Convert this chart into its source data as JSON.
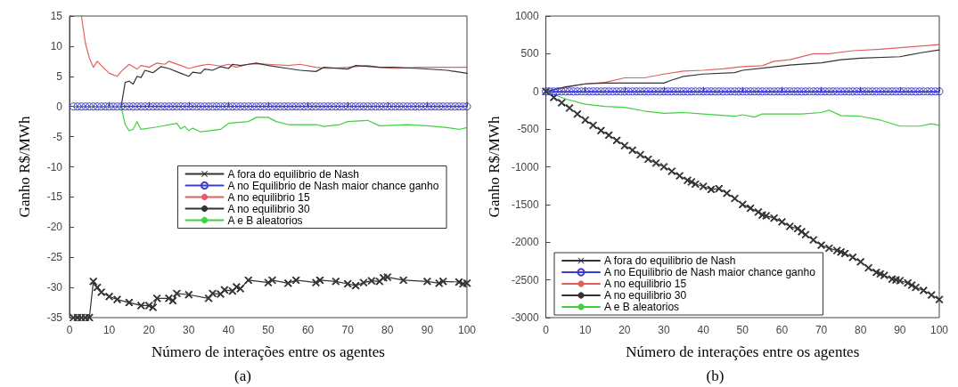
{
  "chart_data": [
    {
      "type": "line",
      "xlabel": "Número de interações entre os agentes",
      "ylabel": "Ganho R$/MWh",
      "annotations": [
        "(a)"
      ],
      "xlim": [
        0,
        100
      ],
      "xticks": [
        0,
        10,
        20,
        30,
        40,
        50,
        60,
        70,
        80,
        90,
        100
      ],
      "ylim": [
        -35,
        15
      ],
      "yticks": [
        -35,
        -30,
        -25,
        -20,
        -15,
        -10,
        -5,
        0,
        5,
        10,
        15
      ],
      "legend": "right",
      "line_style": "solid",
      "series": [
        {
          "name": "A fora do equilibrio de Nash",
          "color": "#333333",
          "marker": "cross",
          "x": [
            1,
            2,
            3,
            4,
            5,
            6,
            7,
            8,
            10,
            12,
            15,
            18,
            20,
            21,
            22,
            25,
            26,
            27,
            30,
            35,
            36,
            38,
            39,
            41,
            42,
            43,
            45,
            50,
            51,
            55,
            57,
            62,
            63,
            67,
            70,
            72,
            74,
            76,
            78,
            79,
            80,
            84,
            90,
            93,
            94,
            98,
            99,
            100
          ],
          "values": [
            -35,
            -35,
            -35,
            -35,
            -35,
            -29,
            -30,
            -30.8,
            -31.5,
            -32,
            -32.5,
            -33,
            -33,
            -33.3,
            -31.8,
            -31.8,
            -32.2,
            -31,
            -31.2,
            -31.8,
            -31,
            -31.1,
            -30.4,
            -30.6,
            -29.9,
            -30.2,
            -28.8,
            -29.2,
            -28.8,
            -29.3,
            -28.8,
            -29.2,
            -28.8,
            -29,
            -29.4,
            -29.7,
            -29.2,
            -28.9,
            -29,
            -28.4,
            -28.3,
            -28.8,
            -29,
            -29.3,
            -29,
            -29.1,
            -29.4,
            -29.3
          ]
        },
        {
          "name": "A no Equilibrio de Nash maior chance ganho",
          "color": "#3b3bd0",
          "marker": "circle",
          "x": [
            1,
            2,
            3,
            4,
            5,
            6,
            7,
            8,
            9,
            10,
            11,
            12,
            13,
            14,
            15,
            16,
            17,
            18,
            19,
            20,
            21,
            22,
            23,
            24,
            25,
            26,
            27,
            28,
            29,
            30,
            31,
            32,
            33,
            34,
            35,
            36,
            37,
            38,
            39,
            40,
            41,
            42,
            43,
            44,
            45,
            46,
            47,
            48,
            49,
            50,
            51,
            52,
            53,
            54,
            55,
            56,
            57,
            58,
            59,
            60,
            61,
            62,
            63,
            64,
            65,
            66,
            67,
            68,
            69,
            70,
            71,
            72,
            73,
            74,
            75,
            76,
            77,
            78,
            79,
            80,
            81,
            82,
            83,
            84,
            85,
            86,
            87,
            88,
            89,
            90,
            91,
            92,
            93,
            94,
            95,
            96,
            97,
            98,
            99,
            100
          ],
          "values": [
            0,
            0,
            0,
            0,
            0,
            0,
            0,
            0,
            0,
            0,
            0,
            0,
            0,
            0,
            0,
            0,
            0,
            0,
            0,
            0,
            0,
            0,
            0,
            0,
            0,
            0,
            0,
            0,
            0,
            0,
            0,
            0,
            0,
            0,
            0,
            0,
            0,
            0,
            0,
            0,
            0,
            0,
            0,
            0,
            0,
            0,
            0,
            0,
            0,
            0,
            0,
            0,
            0,
            0,
            0,
            0,
            0,
            0,
            0,
            0,
            0,
            0,
            0,
            0,
            0,
            0,
            0,
            0,
            0,
            0,
            0,
            0,
            0,
            0,
            0,
            0,
            0,
            0,
            0,
            0,
            0,
            0,
            0,
            0,
            0,
            0,
            0,
            0,
            0,
            0,
            0,
            0,
            0,
            0,
            0,
            0,
            0,
            0,
            0,
            0
          ]
        },
        {
          "name": "A no equilibrio 15",
          "color": "#e06060",
          "marker": "none",
          "x": [
            3,
            4,
            5,
            6,
            7,
            8,
            10,
            12,
            13,
            15,
            17,
            18,
            20,
            22,
            24,
            25,
            28,
            30,
            33,
            35,
            38,
            40,
            42,
            45,
            47,
            50,
            55,
            58,
            62,
            65,
            70,
            75,
            78,
            82,
            88,
            95,
            100
          ],
          "values": [
            15,
            10.5,
            8,
            6.5,
            7.5,
            6.8,
            5.5,
            5,
            5.8,
            7,
            6.2,
            6.8,
            6.5,
            7.2,
            7,
            7.5,
            6.8,
            6.3,
            6.8,
            7,
            6.7,
            7,
            6.5,
            7,
            7.1,
            7,
            6.8,
            7,
            6.5,
            6.3,
            6.5,
            6.8,
            6.5,
            6.3,
            6.5,
            6.5,
            6.5
          ]
        },
        {
          "name": "A no equilibrio 30",
          "color": "#333333",
          "marker": "none",
          "x": [
            1,
            13,
            14,
            15,
            16,
            17,
            18,
            19,
            20,
            21,
            23,
            25,
            28,
            30,
            31,
            33,
            34,
            36,
            38,
            40,
            41,
            43,
            45,
            47,
            50,
            55,
            58,
            62,
            64,
            70,
            72,
            78,
            82,
            88,
            95,
            100
          ],
          "values": [
            0,
            0,
            4,
            4.2,
            3.7,
            5,
            4.8,
            6,
            5.8,
            5.6,
            6.6,
            6.3,
            5.5,
            5,
            5.7,
            5.5,
            6.2,
            6,
            6.6,
            6.3,
            7,
            6.8,
            7,
            7.2,
            6.8,
            6.3,
            6,
            5.8,
            6.5,
            6.2,
            6.8,
            6.5,
            6.5,
            6.3,
            6,
            5.5
          ]
        },
        {
          "name": "A e B aleatorios",
          "color": "#40d040",
          "marker": "none",
          "x": [
            1,
            13,
            14,
            15,
            16,
            17,
            18,
            22,
            27,
            28,
            29,
            30,
            31,
            33,
            38,
            40,
            45,
            47,
            50,
            52,
            55,
            62,
            64,
            68,
            70,
            75,
            78,
            85,
            90,
            95,
            98,
            100
          ],
          "values": [
            0,
            0,
            -3,
            -4,
            -3.8,
            -2.5,
            -3.8,
            -3.4,
            -2.8,
            -3.7,
            -3.3,
            -4,
            -3.6,
            -4.2,
            -3.8,
            -2.8,
            -2.5,
            -1.8,
            -1.8,
            -2.5,
            -3,
            -3,
            -3.3,
            -3,
            -2.5,
            -2.3,
            -3.2,
            -3,
            -3.2,
            -3.5,
            -3.8,
            -3.5
          ]
        }
      ]
    },
    {
      "type": "line",
      "xlabel": "Número de interações entre os agentes",
      "ylabel": "Ganho R$/MWh",
      "annotations": [
        "(b)"
      ],
      "xlim": [
        0,
        100
      ],
      "xticks": [
        0,
        10,
        20,
        30,
        40,
        50,
        60,
        70,
        80,
        90,
        100
      ],
      "ylim": [
        -3000,
        1000
      ],
      "yticks": [
        -3000,
        -2500,
        -2000,
        -1500,
        -1000,
        -500,
        0,
        500,
        1000
      ],
      "legend": "bottom left",
      "line_style": "solid",
      "series": [
        {
          "name": "A fora do equilibrio de Nash",
          "color": "#333333",
          "marker": "cross",
          "x": [
            0,
            2,
            4,
            6,
            8,
            10,
            12,
            14,
            16,
            18,
            20,
            22,
            24,
            26,
            28,
            30,
            32,
            34,
            36,
            37,
            38,
            40,
            42,
            44,
            46,
            48,
            50,
            52,
            54,
            55,
            56,
            58,
            60,
            62,
            64,
            65,
            66,
            68,
            70,
            72,
            74,
            75,
            76,
            78,
            80,
            82,
            84,
            85,
            86,
            88,
            89,
            90,
            92,
            93,
            94,
            96,
            98,
            100
          ],
          "values": [
            0,
            -80,
            -150,
            -220,
            -300,
            -380,
            -450,
            -520,
            -580,
            -650,
            -720,
            -780,
            -840,
            -900,
            -950,
            -1000,
            -1060,
            -1120,
            -1180,
            -1200,
            -1230,
            -1260,
            -1300,
            -1290,
            -1350,
            -1420,
            -1500,
            -1550,
            -1600,
            -1640,
            -1650,
            -1680,
            -1730,
            -1790,
            -1820,
            -1860,
            -1900,
            -1970,
            -2040,
            -2080,
            -2110,
            -2130,
            -2150,
            -2200,
            -2260,
            -2340,
            -2400,
            -2420,
            -2440,
            -2490,
            -2500,
            -2510,
            -2540,
            -2570,
            -2600,
            -2640,
            -2700,
            -2760
          ]
        },
        {
          "name": "A no Equilibrio de Nash maior chance ganho",
          "color": "#3b3bd0",
          "marker": "circle",
          "x": [
            0,
            1,
            2,
            3,
            4,
            5,
            6,
            7,
            8,
            9,
            10,
            11,
            12,
            13,
            14,
            15,
            16,
            17,
            18,
            19,
            20,
            21,
            22,
            23,
            24,
            25,
            26,
            27,
            28,
            29,
            30,
            31,
            32,
            33,
            34,
            35,
            36,
            37,
            38,
            39,
            40,
            41,
            42,
            43,
            44,
            45,
            46,
            47,
            48,
            49,
            50,
            51,
            52,
            53,
            54,
            55,
            56,
            57,
            58,
            59,
            60,
            61,
            62,
            63,
            64,
            65,
            66,
            67,
            68,
            69,
            70,
            71,
            72,
            73,
            74,
            75,
            76,
            77,
            78,
            79,
            80,
            81,
            82,
            83,
            84,
            85,
            86,
            87,
            88,
            89,
            90,
            91,
            92,
            93,
            94,
            95,
            96,
            97,
            98,
            99,
            100
          ],
          "values": [
            0,
            0,
            0,
            0,
            0,
            0,
            0,
            0,
            0,
            0,
            0,
            0,
            0,
            0,
            0,
            0,
            0,
            0,
            0,
            0,
            0,
            0,
            0,
            0,
            0,
            0,
            0,
            0,
            0,
            0,
            0,
            0,
            0,
            0,
            0,
            0,
            0,
            0,
            0,
            0,
            0,
            0,
            0,
            0,
            0,
            0,
            0,
            0,
            0,
            0,
            0,
            0,
            0,
            0,
            0,
            0,
            0,
            0,
            0,
            0,
            0,
            0,
            0,
            0,
            0,
            0,
            0,
            0,
            0,
            0,
            0,
            0,
            0,
            0,
            0,
            0,
            0,
            0,
            0,
            0,
            0,
            0,
            0,
            0,
            0,
            0,
            0,
            0,
            0,
            0,
            0,
            0,
            0,
            0,
            0,
            0,
            0,
            0,
            0,
            0,
            0
          ]
        },
        {
          "name": "A no equilibrio 15",
          "color": "#e06060",
          "marker": "none",
          "x": [
            0,
            5,
            10,
            15,
            20,
            25,
            30,
            35,
            40,
            45,
            50,
            55,
            58,
            62,
            68,
            72,
            78,
            85,
            90,
            95,
            100
          ],
          "values": [
            0,
            50,
            100,
            120,
            180,
            180,
            230,
            270,
            280,
            300,
            330,
            340,
            400,
            420,
            500,
            500,
            540,
            560,
            580,
            600,
            620
          ]
        },
        {
          "name": "A no equilibrio 30",
          "color": "#333333",
          "marker": "none",
          "x": [
            0,
            5,
            10,
            15,
            30,
            32,
            35,
            40,
            48,
            50,
            57,
            62,
            70,
            75,
            80,
            90,
            95,
            100
          ],
          "values": [
            0,
            60,
            100,
            110,
            110,
            150,
            200,
            230,
            250,
            280,
            320,
            350,
            380,
            420,
            440,
            460,
            510,
            550
          ]
        },
        {
          "name": "A e B aleatorios",
          "color": "#40d040",
          "marker": "none",
          "x": [
            0,
            5,
            10,
            15,
            20,
            25,
            30,
            35,
            40,
            48,
            50,
            53,
            55,
            65,
            70,
            72,
            75,
            80,
            85,
            90,
            95,
            98,
            100
          ],
          "values": [
            0,
            -100,
            -170,
            -200,
            -210,
            -260,
            -290,
            -280,
            -300,
            -330,
            -310,
            -340,
            -300,
            -300,
            -280,
            -250,
            -320,
            -330,
            -380,
            -460,
            -460,
            -430,
            -450
          ]
        }
      ]
    }
  ]
}
